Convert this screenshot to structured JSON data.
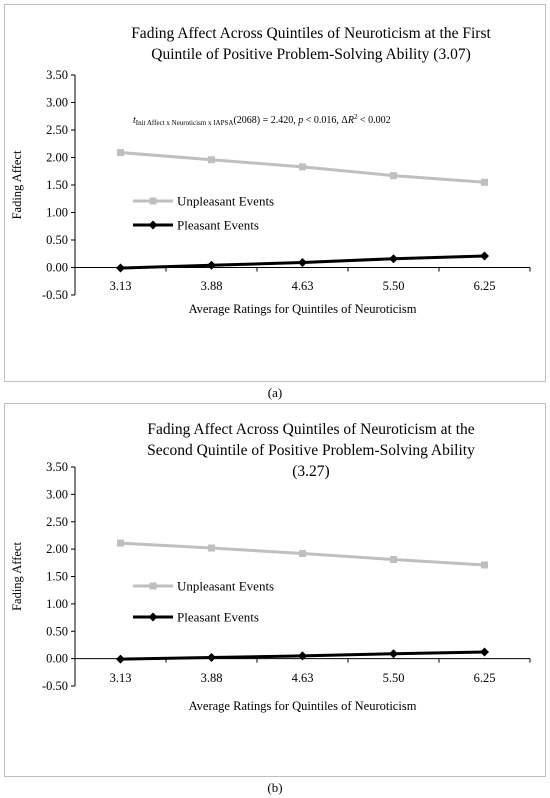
{
  "colors": {
    "unpleasant": "#bfbfbf",
    "pleasant": "#000000",
    "axis": "#000000",
    "border": "#bfbfbf"
  },
  "chart_data": [
    {
      "type": "line",
      "caption": "(a)",
      "title_lines": [
        "Fading Affect Across Quintiles of Neuroticism at the First",
        "Quintile of Positive Problem-Solving Ability  (3.07)"
      ],
      "xlabel": "Average Ratings for Quintiles of Neuroticism",
      "ylabel": "Fading Affect",
      "categories": [
        "3.13",
        "3.88",
        "4.63",
        "5.50",
        "6.25"
      ],
      "ylim": [
        -0.5,
        3.5
      ],
      "yticks": [
        "-0.50",
        "0.00",
        "0.50",
        "1.00",
        "1.50",
        "2.00",
        "2.50",
        "3.00",
        "3.50"
      ],
      "series": [
        {
          "name": "Unpleasant Events",
          "marker": "square",
          "values": [
            2.09,
            1.96,
            1.83,
            1.67,
            1.55
          ]
        },
        {
          "name": "Pleasant Events",
          "marker": "diamond",
          "values": [
            -0.01,
            0.04,
            0.09,
            0.16,
            0.21
          ]
        }
      ],
      "legend_position": "left",
      "annotation": {
        "t": "t",
        "sub": "Init Affect x Neuroticism x IAPSA",
        "rest_1": "(2068) = 2.420, ",
        "p": "p",
        "rest_2": " < 0.016, Δ",
        "R": "R",
        "sup": "2",
        "rest_3": " < 0.002"
      }
    },
    {
      "type": "line",
      "caption": "(b)",
      "title_lines": [
        "Fading Affect Across Quintiles of Neuroticism at the",
        "Second Quintile of Positive Problem-Solving Ability",
        "(3.27)"
      ],
      "xlabel": "Average Ratings for Quintiles of Neuroticism",
      "ylabel": "Fading Affect",
      "categories": [
        "3.13",
        "3.88",
        "4.63",
        "5.50",
        "6.25"
      ],
      "ylim": [
        -0.5,
        3.5
      ],
      "yticks": [
        "-0.50",
        "0.00",
        "0.50",
        "1.00",
        "1.50",
        "2.00",
        "2.50",
        "3.00",
        "3.50"
      ],
      "series": [
        {
          "name": "Unpleasant Events",
          "marker": "square",
          "values": [
            2.11,
            2.02,
            1.92,
            1.81,
            1.71
          ]
        },
        {
          "name": "Pleasant Events",
          "marker": "diamond",
          "values": [
            -0.01,
            0.02,
            0.05,
            0.09,
            0.12
          ]
        }
      ],
      "legend_position": "left"
    }
  ]
}
